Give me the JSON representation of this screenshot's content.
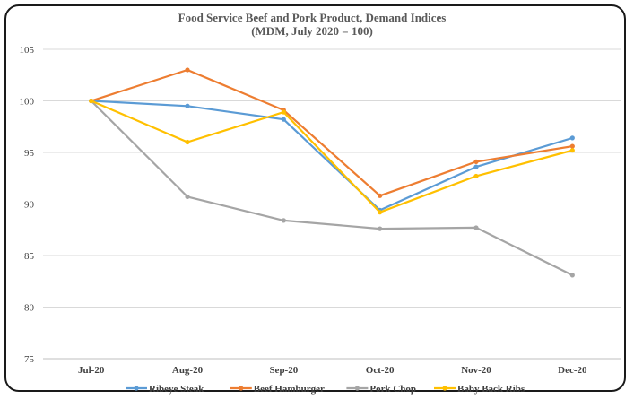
{
  "chart_data": {
    "type": "line",
    "title": "Food Service Beef and Pork Product, Demand Indices",
    "subtitle": "(MDM, July 2020 = 100)",
    "xlabel": "",
    "ylabel": "",
    "categories": [
      "Jul-20",
      "Aug-20",
      "Sep-20",
      "Oct-20",
      "Nov-20",
      "Dec-20"
    ],
    "ylim": [
      75,
      105
    ],
    "yticks": [
      75,
      80,
      85,
      90,
      95,
      100,
      105
    ],
    "grid": true,
    "legend_position": "bottom",
    "series": [
      {
        "name": "Ribeye Steak",
        "color": "#5B9BD5",
        "values": [
          100,
          99.5,
          98.2,
          89.4,
          93.6,
          96.4
        ]
      },
      {
        "name": "Beef Hamburger",
        "color": "#ED7D31",
        "values": [
          100,
          103.0,
          99.1,
          90.8,
          94.1,
          95.6
        ]
      },
      {
        "name": "Pork Chop",
        "color": "#A5A5A5",
        "values": [
          100,
          90.7,
          88.4,
          87.6,
          87.7,
          83.1
        ]
      },
      {
        "name": "Baby Back Ribs",
        "color": "#FFC000",
        "values": [
          100,
          96.0,
          98.9,
          89.2,
          92.7,
          95.2
        ]
      }
    ]
  }
}
